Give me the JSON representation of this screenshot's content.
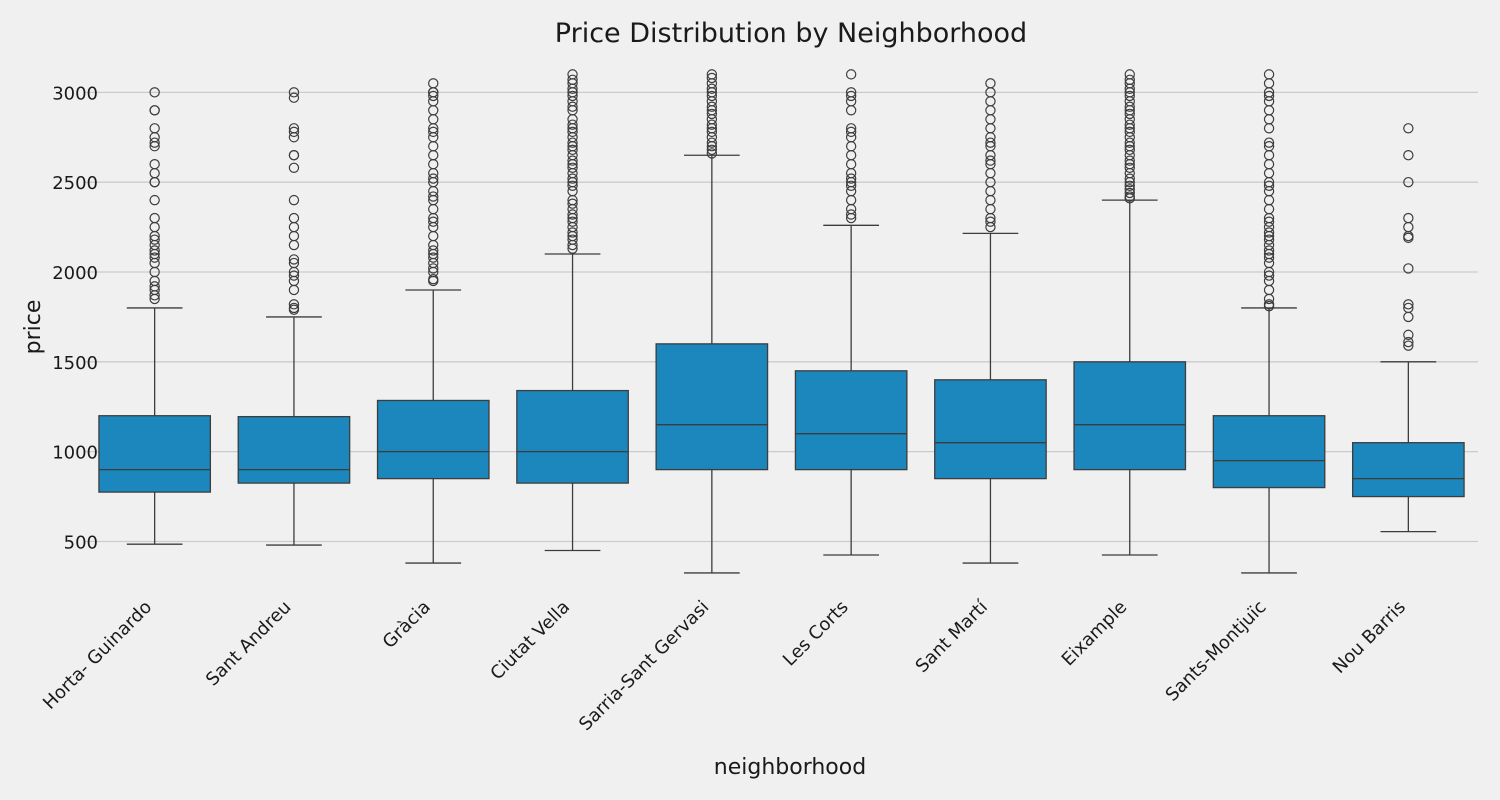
{
  "chart_data": {
    "type": "box",
    "title": "Price Distribution by Neighborhood",
    "xlabel": "neighborhood",
    "ylabel": "price",
    "ylim": [
      230,
      3180
    ],
    "yticks": [
      500,
      1000,
      1500,
      2000,
      2500,
      3000
    ],
    "grid": "horizontal",
    "colors": {
      "box": "#1b87bd",
      "line": "#3d3d3d",
      "background": "#f0f0f0",
      "grid": "#cbcbcb"
    },
    "categories": [
      "Horta- Guinardo",
      "Sant Andreu",
      "Gràcia",
      "Ciutat Vella",
      "Sarria-Sant Gervasi",
      "Les Corts",
      "Sant Martí",
      "Eixample",
      "Sants-Montjuïc",
      "Nou Barris"
    ],
    "boxes": [
      {
        "whisker_low": 485,
        "q1": 775,
        "median": 900,
        "q3": 1200,
        "whisker_high": 1800,
        "outliers": [
          1850,
          1870,
          1900,
          1920,
          1950,
          2000,
          2050,
          2080,
          2100,
          2120,
          2150,
          2180,
          2200,
          2250,
          2300,
          2400,
          2500,
          2500,
          2550,
          2600,
          2700,
          2720,
          2750,
          2800,
          2900,
          2900,
          3000
        ]
      },
      {
        "whisker_low": 480,
        "q1": 825,
        "median": 900,
        "q3": 1195,
        "whisker_high": 1750,
        "outliers": [
          1790,
          1800,
          1820,
          1900,
          1950,
          1980,
          2000,
          2050,
          2070,
          2150,
          2200,
          2250,
          2300,
          2400,
          2580,
          2650,
          2650,
          2750,
          2780,
          2800,
          2970,
          3000
        ]
      },
      {
        "whisker_low": 380,
        "q1": 850,
        "median": 1000,
        "q3": 1285,
        "whisker_high": 1900,
        "outliers": [
          1950,
          1960,
          2000,
          2020,
          2050,
          2080,
          2100,
          2120,
          2150,
          2200,
          2250,
          2280,
          2300,
          2350,
          2400,
          2420,
          2450,
          2500,
          2520,
          2550,
          2600,
          2650,
          2700,
          2750,
          2780,
          2800,
          2850,
          2900,
          2950,
          2980,
          3000,
          3000,
          3050
        ]
      },
      {
        "whisker_low": 450,
        "q1": 825,
        "median": 1000,
        "q3": 1340,
        "whisker_high": 2100,
        "outliers": [
          2130,
          2150,
          2180,
          2200,
          2220,
          2250,
          2280,
          2300,
          2320,
          2350,
          2380,
          2400,
          2450,
          2480,
          2500,
          2520,
          2550,
          2580,
          2600,
          2620,
          2650,
          2680,
          2700,
          2720,
          2750,
          2780,
          2800,
          2820,
          2850,
          2900,
          2920,
          2950,
          2980,
          3000,
          3020,
          3050,
          3070,
          3100
        ]
      },
      {
        "whisker_low": 325,
        "q1": 900,
        "median": 1150,
        "q3": 1600,
        "whisker_high": 2650,
        "outliers": [
          2660,
          2680,
          2700,
          2720,
          2750,
          2780,
          2800,
          2820,
          2850,
          2880,
          2900,
          2920,
          2950,
          2980,
          3000,
          3020,
          3050,
          3080,
          3100
        ]
      },
      {
        "whisker_low": 425,
        "q1": 900,
        "median": 1100,
        "q3": 1450,
        "whisker_high": 2260,
        "outliers": [
          2300,
          2320,
          2350,
          2400,
          2450,
          2480,
          2500,
          2520,
          2550,
          2600,
          2650,
          2700,
          2750,
          2780,
          2800,
          2900,
          2950,
          2980,
          3000,
          3100
        ]
      },
      {
        "whisker_low": 380,
        "q1": 850,
        "median": 1050,
        "q3": 1400,
        "whisker_high": 2215,
        "outliers": [
          2250,
          2280,
          2300,
          2350,
          2400,
          2450,
          2500,
          2550,
          2600,
          2620,
          2650,
          2700,
          2720,
          2750,
          2800,
          2850,
          2900,
          2950,
          3000,
          3050
        ]
      },
      {
        "whisker_low": 425,
        "q1": 900,
        "median": 1150,
        "q3": 1500,
        "whisker_high": 2400,
        "outliers": [
          2410,
          2420,
          2440,
          2460,
          2480,
          2500,
          2520,
          2550,
          2580,
          2600,
          2620,
          2650,
          2680,
          2700,
          2720,
          2750,
          2780,
          2800,
          2820,
          2850,
          2880,
          2900,
          2920,
          2950,
          2980,
          3000,
          3020,
          3050,
          3070,
          3100
        ]
      },
      {
        "whisker_low": 325,
        "q1": 800,
        "median": 950,
        "q3": 1200,
        "whisker_high": 1800,
        "outliers": [
          1810,
          1820,
          1850,
          1900,
          1950,
          1980,
          2000,
          2050,
          2080,
          2100,
          2120,
          2150,
          2180,
          2200,
          2220,
          2250,
          2280,
          2300,
          2350,
          2400,
          2450,
          2480,
          2500,
          2550,
          2600,
          2650,
          2700,
          2720,
          2800,
          2850,
          2900,
          2950,
          2980,
          3000,
          3050,
          3100
        ]
      },
      {
        "whisker_low": 555,
        "q1": 750,
        "median": 850,
        "q3": 1050,
        "whisker_high": 1500,
        "outliers": [
          1590,
          1610,
          1650,
          1750,
          1800,
          1820,
          2020,
          2190,
          2200,
          2250,
          2300,
          2500,
          2650,
          2800
        ]
      }
    ]
  }
}
